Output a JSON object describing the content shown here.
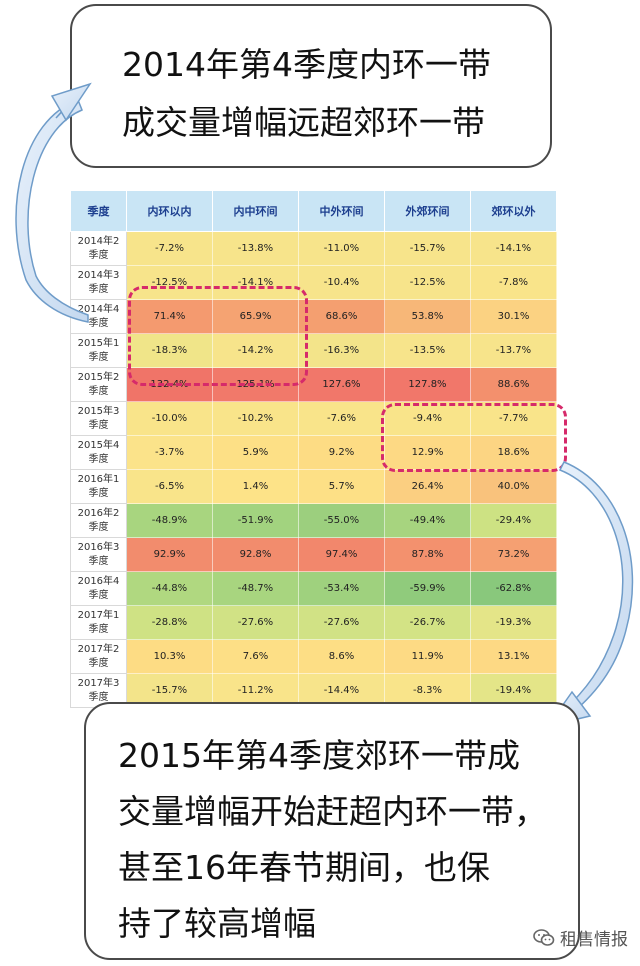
{
  "callout_top": {
    "lines": [
      "2014年第4季度内环一带",
      "成交量增幅远超郊环一带"
    ]
  },
  "callout_bottom": {
    "lines": [
      "2015年第4季度郊环一带成",
      "交量增幅开始赶超内环一带，",
      "甚至16年春节期间，也保",
      "持了较高增幅"
    ]
  },
  "watermark": {
    "text": "租售情报",
    "icon": "wechat-icon"
  },
  "chart_data": {
    "type": "table",
    "columns": [
      "季度",
      "内环以内",
      "内中环间",
      "中外环间",
      "外郊环间",
      "郊环以外"
    ],
    "rows": [
      {
        "quarter": "2014年2季度",
        "values": [
          "-7.2%",
          "-13.8%",
          "-11.0%",
          "-15.7%",
          "-14.1%"
        ],
        "colors": [
          "#f7e48b",
          "#f7e48b",
          "#f7e48b",
          "#f7e48b",
          "#f7e48b"
        ]
      },
      {
        "quarter": "2014年3季度",
        "values": [
          "-12.5%",
          "-14.1%",
          "-10.4%",
          "-12.5%",
          "-7.8%"
        ],
        "colors": [
          "#f7e48b",
          "#f7e48b",
          "#f7e48b",
          "#f7e48b",
          "#f9e48a"
        ]
      },
      {
        "quarter": "2014年4季度",
        "values": [
          "71.4%",
          "65.9%",
          "68.6%",
          "53.8%",
          "30.1%"
        ],
        "colors": [
          "#f49a6f",
          "#f5a372",
          "#f49f70",
          "#f7b778",
          "#fbd282"
        ]
      },
      {
        "quarter": "2015年1季度",
        "values": [
          "-18.3%",
          "-14.2%",
          "-16.3%",
          "-13.5%",
          "-13.7%"
        ],
        "colors": [
          "#f0e589",
          "#f7e48b",
          "#f3e48a",
          "#f7e48b",
          "#f7e48b"
        ]
      },
      {
        "quarter": "2015年2季度",
        "values": [
          "132.4%",
          "125.1%",
          "127.6%",
          "127.8%",
          "88.6%"
        ],
        "colors": [
          "#f07468",
          "#f1796a",
          "#f1776a",
          "#f1776a",
          "#f3906d"
        ]
      },
      {
        "quarter": "2015年3季度",
        "values": [
          "-10.0%",
          "-10.2%",
          "-7.6%",
          "-9.4%",
          "-7.7%"
        ],
        "colors": [
          "#f9e48a",
          "#f9e48a",
          "#f9e48a",
          "#f9e48a",
          "#f9e48a"
        ]
      },
      {
        "quarter": "2015年4季度",
        "values": [
          "-3.7%",
          "5.9%",
          "9.2%",
          "12.9%",
          "18.6%"
        ],
        "colors": [
          "#fbe38a",
          "#fde086",
          "#fddc84",
          "#fdd984",
          "#fcd583"
        ]
      },
      {
        "quarter": "2016年1季度",
        "values": [
          "-6.5%",
          "1.4%",
          "5.7%",
          "26.4%",
          "40.0%"
        ],
        "colors": [
          "#f9e48a",
          "#fde388",
          "#fde086",
          "#fbcf81",
          "#f9c27c"
        ]
      },
      {
        "quarter": "2016年2季度",
        "values": [
          "-48.9%",
          "-51.9%",
          "-55.0%",
          "-49.4%",
          "-29.4%"
        ],
        "colors": [
          "#a8d57f",
          "#a2d37f",
          "#9ccf7e",
          "#a7d47f",
          "#cde283"
        ]
      },
      {
        "quarter": "2016年3季度",
        "values": [
          "92.9%",
          "92.8%",
          "97.4%",
          "87.8%",
          "73.2%"
        ],
        "colors": [
          "#f28c6d",
          "#f28c6d",
          "#f2876c",
          "#f3916e",
          "#f5a072"
        ]
      },
      {
        "quarter": "2016年4季度",
        "values": [
          "-44.8%",
          "-48.7%",
          "-53.4%",
          "-59.9%",
          "-62.8%"
        ],
        "colors": [
          "#b0d880",
          "#a8d57f",
          "#9fd17e",
          "#90cb7c",
          "#89c87c"
        ]
      },
      {
        "quarter": "2017年1季度",
        "values": [
          "-28.8%",
          "-27.6%",
          "-27.6%",
          "-26.7%",
          "-19.3%"
        ],
        "colors": [
          "#cfe284",
          "#d1e285",
          "#d1e285",
          "#d3e385",
          "#e4e588"
        ]
      },
      {
        "quarter": "2017年2季度",
        "values": [
          "10.3%",
          "7.6%",
          "8.6%",
          "11.9%",
          "13.1%"
        ],
        "colors": [
          "#fddc84",
          "#fddf86",
          "#fdde85",
          "#fdda84",
          "#fdd984"
        ]
      },
      {
        "quarter": "2017年3季度",
        "values": [
          "-15.7%",
          "-11.2%",
          "-14.4%",
          "-8.3%",
          "-19.4%"
        ],
        "colors": [
          "#f3e48a",
          "#f9e48a",
          "#f7e48b",
          "#f9e48a",
          "#e4e588"
        ]
      }
    ],
    "highlights": [
      {
        "rows": [
          "2014年4季度",
          "2015年2季度"
        ],
        "columns": [
          "内环以内",
          "内中环间"
        ]
      },
      {
        "rows": [
          "2015年4季度",
          "2016年1季度"
        ],
        "columns": [
          "外郊环间",
          "郊环以外"
        ]
      }
    ]
  }
}
